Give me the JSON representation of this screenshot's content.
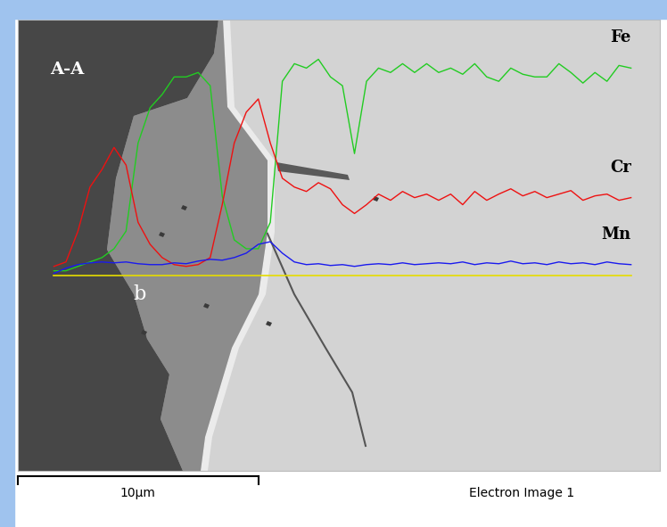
{
  "chart_data": {
    "type": "line",
    "annotations": [
      "A-A",
      "b"
    ],
    "caption": "Electron Image 1",
    "scale_bar": {
      "length": 10,
      "label": "10µm"
    },
    "x": [
      1.5,
      2.0,
      2.5,
      3.0,
      3.5,
      4.0,
      4.5,
      5.0,
      5.5,
      6.0,
      6.5,
      7.0,
      7.5,
      8.0,
      8.5,
      9.0,
      9.5,
      10.0,
      10.5,
      11.0,
      11.5,
      12.0,
      12.5,
      13.0,
      13.5,
      14.0,
      14.5,
      15.0,
      15.5,
      16.0,
      16.5,
      17.0,
      17.5,
      18.0,
      18.5,
      19.0,
      19.5,
      20.0,
      20.5,
      21.0,
      21.5,
      22.0,
      22.5,
      23.0,
      23.5,
      24.0,
      24.5,
      25.0,
      25.5
    ],
    "xlim": [
      0,
      26.7
    ],
    "ylim": [
      -222,
      290
    ],
    "xticks": [],
    "yticks": [],
    "tick_labels": false,
    "series": [
      {
        "name": "Fe",
        "color": "#22cc22",
        "values": [
          5,
          5,
          10,
          15,
          20,
          30,
          50,
          150,
          190,
          205,
          225,
          225,
          230,
          215,
          90,
          40,
          30,
          30,
          60,
          220,
          240,
          235,
          245,
          225,
          215,
          138,
          220,
          235,
          230,
          240,
          230,
          240,
          230,
          235,
          228,
          240,
          225,
          220,
          235,
          228,
          225,
          225,
          240,
          230,
          218,
          230,
          220,
          238,
          235
        ]
      },
      {
        "name": "Cr",
        "color": "#ee1111",
        "values": [
          10,
          15,
          50,
          100,
          120,
          145,
          125,
          60,
          35,
          20,
          12,
          10,
          12,
          20,
          80,
          150,
          185,
          200,
          150,
          110,
          100,
          95,
          105,
          98,
          80,
          70,
          80,
          92,
          85,
          95,
          88,
          92,
          85,
          92,
          80,
          95,
          85,
          92,
          98,
          90,
          95,
          88,
          92,
          96,
          85,
          90,
          92,
          85,
          88
        ]
      },
      {
        "name": "Mn",
        "color": "#1a1aee",
        "values": [
          2,
          8,
          12,
          14,
          15,
          14,
          15,
          13,
          12,
          12,
          14,
          13,
          16,
          18,
          17,
          20,
          25,
          35,
          38,
          25,
          15,
          12,
          13,
          11,
          12,
          10,
          12,
          13,
          12,
          14,
          12,
          13,
          14,
          13,
          15,
          12,
          14,
          13,
          16,
          13,
          14,
          12,
          15,
          13,
          14,
          12,
          15,
          13,
          12
        ]
      }
    ]
  }
}
